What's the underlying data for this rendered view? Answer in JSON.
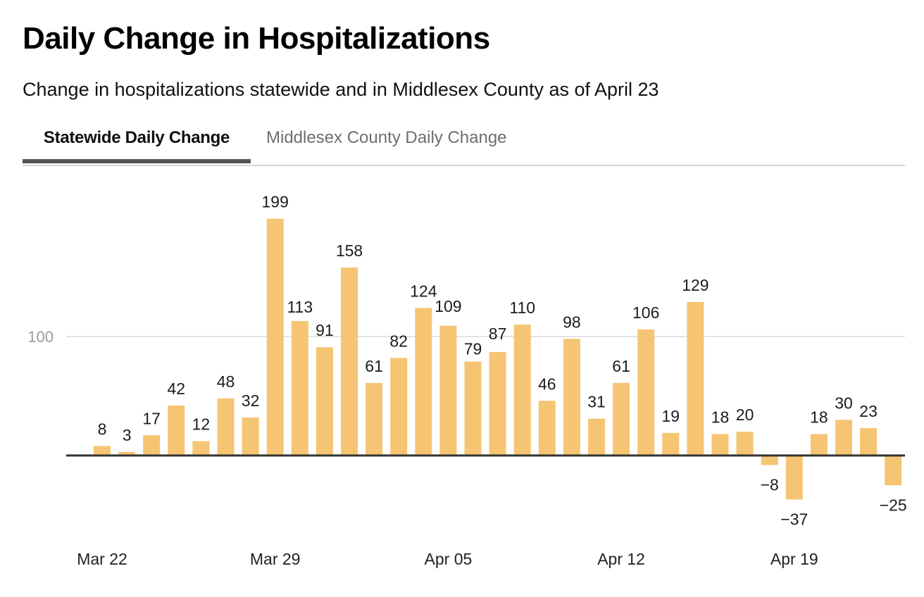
{
  "header": {
    "title": "Daily Change in Hospitalizations",
    "subtitle": "Change in hospitalizations statewide and in Middlesex County as of April 23"
  },
  "tabs": [
    {
      "label": "Statewide Daily Change",
      "active": true
    },
    {
      "label": "Middlesex County Daily Change",
      "active": false
    }
  ],
  "colors": {
    "bar": "#f5c574",
    "baseline": "#333333",
    "gridline": "#e3e3e3",
    "tab_underline": "#555555"
  },
  "chart_data": {
    "type": "bar",
    "title": "Daily Change in Hospitalizations",
    "subtitle": "Statewide Daily Change",
    "xlabel": "",
    "ylabel": "",
    "ylim": [
      -50,
      200
    ],
    "yticks": [
      100
    ],
    "grid": true,
    "legend": "none",
    "categories": [
      "Mar 22",
      "Mar 23",
      "Mar 24",
      "Mar 25",
      "Mar 26",
      "Mar 27",
      "Mar 28",
      "Mar 29",
      "Mar 30",
      "Mar 31",
      "Apr 01",
      "Apr 02",
      "Apr 03",
      "Apr 04",
      "Apr 05",
      "Apr 06",
      "Apr 07",
      "Apr 08",
      "Apr 09",
      "Apr 10",
      "Apr 11",
      "Apr 12",
      "Apr 13",
      "Apr 14",
      "Apr 15",
      "Apr 16",
      "Apr 17",
      "Apr 18",
      "Apr 19",
      "Apr 20",
      "Apr 21",
      "Apr 22",
      "Apr 23"
    ],
    "xtick_labels": [
      {
        "index": 0,
        "label": "Mar 22"
      },
      {
        "index": 7,
        "label": "Mar 29"
      },
      {
        "index": 14,
        "label": "Apr 05"
      },
      {
        "index": 21,
        "label": "Apr 12"
      },
      {
        "index": 28,
        "label": "Apr 19"
      }
    ],
    "values": [
      8,
      3,
      17,
      42,
      12,
      48,
      32,
      199,
      113,
      91,
      158,
      61,
      82,
      124,
      109,
      79,
      87,
      110,
      46,
      98,
      31,
      61,
      106,
      19,
      129,
      18,
      20,
      -8,
      -37,
      18,
      30,
      23,
      -25
    ],
    "value_labels": [
      "8",
      "3",
      "17",
      "42",
      "12",
      "48",
      "32",
      "199",
      "113",
      "91",
      "158",
      "61",
      "82",
      "124",
      "109",
      "79",
      "87",
      "110",
      "46",
      "98",
      "31",
      "61",
      "106",
      "19",
      "129",
      "18",
      "20",
      "−8",
      "−37",
      "18",
      "30",
      "23",
      "−25"
    ],
    "ytick_labels": [
      "100"
    ]
  }
}
